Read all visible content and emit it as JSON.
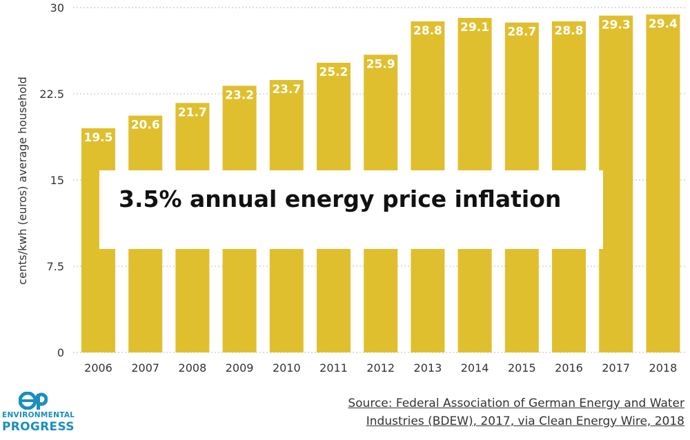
{
  "chart_data": {
    "type": "bar",
    "categories": [
      "2006",
      "2007",
      "2008",
      "2009",
      "2010",
      "2011",
      "2012",
      "2013",
      "2014",
      "2015",
      "2016",
      "2017",
      "2018"
    ],
    "values": [
      19.5,
      20.6,
      21.7,
      23.2,
      23.7,
      25.2,
      25.9,
      28.8,
      29.1,
      28.7,
      28.8,
      29.3,
      29.4
    ],
    "data_labels": [
      "19.5",
      "20.6",
      "21.7",
      "23.2",
      "23.7",
      "25.2",
      "25.9",
      "28.8",
      "29.1",
      "28.7",
      "28.8",
      "29.3",
      "29.4"
    ],
    "ylabel": "cents/kwh (euros) average household",
    "ylim": [
      0,
      30
    ],
    "yticks": [
      "0",
      "7.5",
      "15",
      "22.5",
      "30"
    ],
    "ytick_values": [
      0,
      7.5,
      15,
      22.5,
      30
    ],
    "grid": true,
    "bar_color": "#e0bf2e",
    "grid_color": "#c7c7c7"
  },
  "annotation": {
    "text": "3.5% annual energy price inflation"
  },
  "logo": {
    "line1": "ENVIRONMENTAL",
    "line2": "PROGRESS",
    "color": "#1a8ec0"
  },
  "source": {
    "line1": "Source: Federal Association of German Energy and Water",
    "line2": "Industries (BDEW), 2017, via Clean Energy Wire, 2018"
  }
}
